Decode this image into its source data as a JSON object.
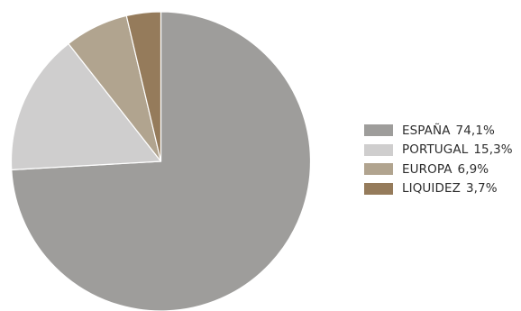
{
  "chart_data": {
    "type": "pie",
    "title": "",
    "start_angle_deg": 0,
    "direction": "clockwise",
    "legend_position": "right",
    "slices": [
      {
        "label": "ESPAÑA",
        "value_label": "74,1%",
        "value": 74.1,
        "color": "#9e9d9b"
      },
      {
        "label": "PORTUGAL",
        "value_label": "15,3%",
        "value": 15.3,
        "color": "#cfcece"
      },
      {
        "label": "EUROPA",
        "value_label": "6,9%",
        "value": 6.9,
        "color": "#b1a48f"
      },
      {
        "label": "LIQUIDEZ",
        "value_label": "3,7%",
        "value": 3.7,
        "color": "#957b5b"
      }
    ]
  }
}
